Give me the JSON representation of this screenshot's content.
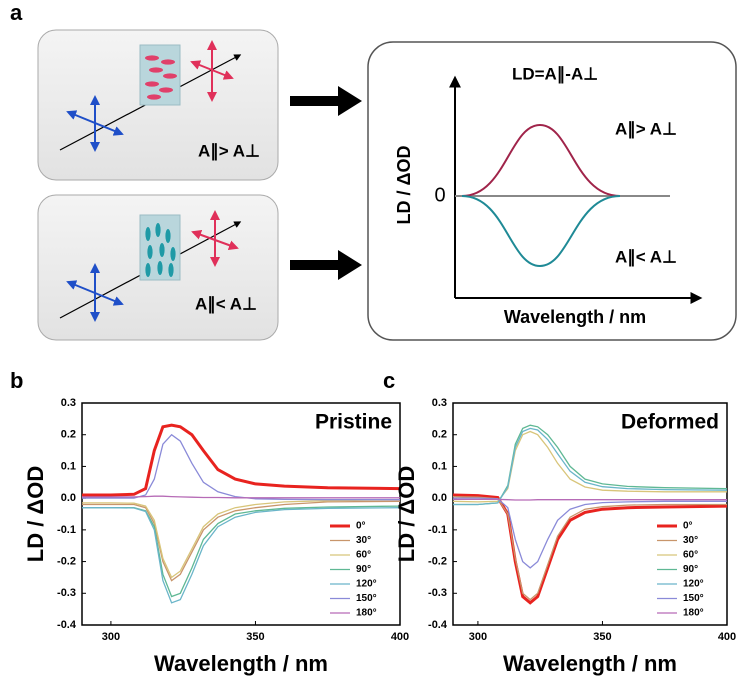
{
  "panel_labels": [
    "a",
    "b",
    "c"
  ],
  "diagram": {
    "top_relation": "A∥> A⊥",
    "bottom_relation": "A∥< A⊥",
    "equation": "LD=A∥-A⊥",
    "plot_positive": "A∥> A⊥",
    "plot_negative": "A∥< A⊥",
    "ylabel": "LD / ΔOD",
    "zero": "0",
    "xlabel": "Wavelength / nm"
  },
  "chart_data": [
    {
      "type": "line",
      "title": "Pristine",
      "xlabel": "Wavelength / nm",
      "ylabel": "LD / ΔOD",
      "x": [
        290,
        300,
        308,
        312,
        315,
        318,
        321,
        324,
        328,
        332,
        337,
        343,
        350,
        360,
        375,
        400
      ],
      "xlim": [
        290,
        400
      ],
      "xticks": [
        300,
        350,
        400
      ],
      "ylim": [
        -0.4,
        0.3
      ],
      "yticks": [
        -0.4,
        -0.3,
        -0.2,
        -0.1,
        {
          "value": 0,
          "label": "0.0"
        },
        0.1,
        0.2,
        0.3
      ],
      "legend": "lower right",
      "series": [
        {
          "name": "0°",
          "color": "#e8231f",
          "values": [
            0.01,
            0.01,
            0.012,
            0.03,
            0.15,
            0.225,
            0.23,
            0.225,
            0.2,
            0.15,
            0.09,
            0.06,
            0.045,
            0.038,
            0.033,
            0.03
          ]
        },
        {
          "name": "30°",
          "color": "#c8956b",
          "values": [
            -0.02,
            -0.02,
            -0.02,
            -0.03,
            -0.08,
            -0.2,
            -0.26,
            -0.24,
            -0.17,
            -0.1,
            -0.06,
            -0.04,
            -0.03,
            -0.02,
            -0.012,
            -0.01
          ]
        },
        {
          "name": "60°",
          "color": "#d8c57a",
          "values": [
            -0.015,
            -0.015,
            -0.016,
            -0.025,
            -0.07,
            -0.19,
            -0.25,
            -0.23,
            -0.16,
            -0.09,
            -0.05,
            -0.03,
            -0.02,
            -0.012,
            -0.008,
            -0.005
          ]
        },
        {
          "name": "90°",
          "color": "#5fb894",
          "values": [
            -0.03,
            -0.03,
            -0.03,
            -0.04,
            -0.09,
            -0.24,
            -0.31,
            -0.3,
            -0.22,
            -0.13,
            -0.08,
            -0.05,
            -0.04,
            -0.032,
            -0.028,
            -0.025
          ]
        },
        {
          "name": "120°",
          "color": "#6ab5c9",
          "values": [
            -0.03,
            -0.03,
            -0.031,
            -0.042,
            -0.1,
            -0.26,
            -0.33,
            -0.32,
            -0.24,
            -0.15,
            -0.09,
            -0.06,
            -0.045,
            -0.036,
            -0.032,
            -0.03
          ]
        },
        {
          "name": "150°",
          "color": "#8a8ad8",
          "values": [
            0,
            0,
            0,
            0.01,
            0.06,
            0.17,
            0.2,
            0.18,
            0.11,
            0.05,
            0.02,
            0.005,
            -0.002,
            -0.004,
            -0.005,
            -0.005
          ]
        },
        {
          "name": "180°",
          "color": "#b66bb6",
          "values": [
            0.004,
            0.004,
            0.004,
            0.005,
            0.006,
            0.006,
            0.005,
            0.004,
            0.003,
            0.002,
            0.002,
            0.001,
            0.001,
            0.001,
            0.001,
            0.001
          ]
        }
      ]
    },
    {
      "type": "line",
      "title": "Deformed",
      "xlabel": "Wavelength / nm",
      "ylabel": "LD / ΔOD",
      "x": [
        290,
        300,
        308,
        312,
        315,
        318,
        321,
        324,
        328,
        332,
        337,
        343,
        350,
        360,
        375,
        400
      ],
      "xlim": [
        290,
        400
      ],
      "xticks": [
        300,
        350,
        400
      ],
      "ylim": [
        -0.4,
        0.3
      ],
      "yticks": [
        -0.4,
        -0.3,
        -0.2,
        -0.1,
        {
          "value": 0,
          "label": "0.0"
        },
        0.1,
        0.2,
        0.3
      ],
      "legend": "lower right",
      "series": [
        {
          "name": "0°",
          "color": "#e8231f",
          "values": [
            0.01,
            0.008,
            0.002,
            -0.05,
            -0.2,
            -0.31,
            -0.33,
            -0.31,
            -0.22,
            -0.13,
            -0.07,
            -0.045,
            -0.035,
            -0.03,
            -0.028,
            -0.025
          ]
        },
        {
          "name": "30°",
          "color": "#c8956b",
          "values": [
            0.005,
            0.003,
            -0.002,
            -0.05,
            -0.19,
            -0.3,
            -0.32,
            -0.3,
            -0.21,
            -0.12,
            -0.06,
            -0.035,
            -0.027,
            -0.022,
            -0.02,
            -0.02
          ]
        },
        {
          "name": "60°",
          "color": "#d8c57a",
          "values": [
            -0.01,
            -0.012,
            -0.01,
            0.03,
            0.15,
            0.2,
            0.21,
            0.2,
            0.16,
            0.11,
            0.06,
            0.035,
            0.025,
            0.022,
            0.02,
            0.02
          ]
        },
        {
          "name": "90°",
          "color": "#5fb894",
          "values": [
            -0.02,
            -0.02,
            -0.015,
            0.04,
            0.17,
            0.22,
            0.23,
            0.225,
            0.2,
            0.16,
            0.1,
            0.06,
            0.045,
            0.037,
            0.033,
            0.03
          ]
        },
        {
          "name": "120°",
          "color": "#6ab5c9",
          "values": [
            -0.02,
            -0.02,
            -0.015,
            0.035,
            0.16,
            0.21,
            0.22,
            0.215,
            0.185,
            0.14,
            0.085,
            0.05,
            0.036,
            0.03,
            0.027,
            0.025
          ]
        },
        {
          "name": "150°",
          "color": "#8a8ad8",
          "values": [
            0,
            0,
            -0.002,
            -0.03,
            -0.13,
            -0.2,
            -0.22,
            -0.2,
            -0.13,
            -0.07,
            -0.035,
            -0.02,
            -0.014,
            -0.012,
            -0.01,
            -0.01
          ]
        },
        {
          "name": "180°",
          "color": "#b66bb6",
          "values": [
            -0.004,
            -0.004,
            -0.004,
            -0.005,
            -0.006,
            -0.006,
            -0.006,
            -0.005,
            -0.005,
            -0.005,
            -0.005,
            -0.005,
            -0.005,
            -0.005,
            -0.005,
            -0.005
          ]
        }
      ]
    }
  ]
}
